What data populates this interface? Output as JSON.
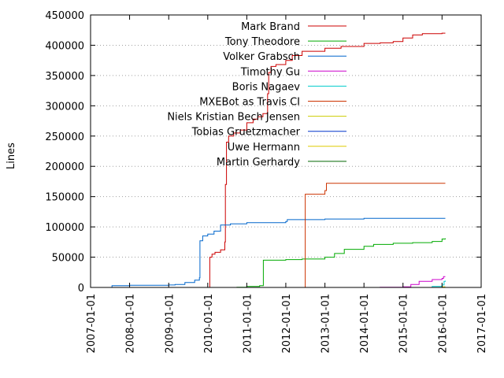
{
  "chart_data": {
    "type": "line",
    "title": "",
    "xlabel": "",
    "ylabel": "Lines",
    "xlim": [
      "2007-01-01",
      "2017-01-01"
    ],
    "ylim": [
      0,
      450000
    ],
    "x_ticks": [
      "2007-01-01",
      "2008-01-01",
      "2009-01-01",
      "2010-01-01",
      "2011-01-01",
      "2012-01-01",
      "2013-01-01",
      "2014-01-01",
      "2015-01-01",
      "2016-01-01",
      "2017-01-01"
    ],
    "y_ticks": [
      0,
      50000,
      100000,
      150000,
      200000,
      250000,
      300000,
      350000,
      400000,
      450000
    ],
    "grid": "y-dotted",
    "legend": "top-right",
    "series": [
      {
        "name": "Mark Brand",
        "color": "#cc0000",
        "points": [
          [
            "2010-01-15",
            0
          ],
          [
            "2010-01-20",
            50000
          ],
          [
            "2010-02-10",
            55000
          ],
          [
            "2010-03-10",
            58000
          ],
          [
            "2010-05-01",
            62000
          ],
          [
            "2010-06-01",
            62000
          ],
          [
            "2010-06-10",
            75000
          ],
          [
            "2010-06-15",
            170000
          ],
          [
            "2010-06-25",
            240000
          ],
          [
            "2010-07-15",
            250000
          ],
          [
            "2010-09-01",
            255000
          ],
          [
            "2010-11-01",
            260000
          ],
          [
            "2011-01-01",
            272000
          ],
          [
            "2011-03-01",
            278000
          ],
          [
            "2011-04-15",
            282000
          ],
          [
            "2011-06-01",
            287000
          ],
          [
            "2011-07-10",
            288000
          ],
          [
            "2011-07-15",
            320000
          ],
          [
            "2011-07-25",
            355000
          ],
          [
            "2011-08-15",
            365000
          ],
          [
            "2011-10-01",
            368000
          ],
          [
            "2012-01-01",
            375000
          ],
          [
            "2012-03-01",
            383000
          ],
          [
            "2012-06-01",
            390000
          ],
          [
            "2013-01-01",
            395000
          ],
          [
            "2013-06-01",
            398000
          ],
          [
            "2014-01-01",
            403000
          ],
          [
            "2014-06-01",
            404000
          ],
          [
            "2014-10-01",
            406000
          ],
          [
            "2015-01-01",
            412000
          ],
          [
            "2015-04-01",
            417000
          ],
          [
            "2015-07-01",
            419000
          ],
          [
            "2016-01-01",
            420000
          ],
          [
            "2016-02-01",
            420000
          ]
        ]
      },
      {
        "name": "Tony Theodore",
        "color": "#00aa00",
        "points": [
          [
            "2010-08-15",
            0
          ],
          [
            "2010-10-01",
            300
          ],
          [
            "2011-01-01",
            1500
          ],
          [
            "2011-05-01",
            3000
          ],
          [
            "2011-06-01",
            3000
          ],
          [
            "2011-06-05",
            45000
          ],
          [
            "2012-01-01",
            46000
          ],
          [
            "2012-06-01",
            47000
          ],
          [
            "2013-01-01",
            50000
          ],
          [
            "2013-04-01",
            56000
          ],
          [
            "2013-07-01",
            63000
          ],
          [
            "2014-01-01",
            68000
          ],
          [
            "2014-04-01",
            71000
          ],
          [
            "2014-10-01",
            73000
          ],
          [
            "2015-04-01",
            74000
          ],
          [
            "2015-10-01",
            76000
          ],
          [
            "2016-01-01",
            80000
          ],
          [
            "2016-02-01",
            81000
          ]
        ]
      },
      {
        "name": "Volker Grabsch",
        "color": "#0066cc",
        "points": [
          [
            "2007-07-15",
            0
          ],
          [
            "2007-07-20",
            3000
          ],
          [
            "2008-01-01",
            3500
          ],
          [
            "2009-01-01",
            4000
          ],
          [
            "2009-03-01",
            5000
          ],
          [
            "2009-06-01",
            8000
          ],
          [
            "2009-09-01",
            12000
          ],
          [
            "2009-10-15",
            16000
          ],
          [
            "2009-10-20",
            77000
          ],
          [
            "2009-11-15",
            85000
          ],
          [
            "2010-01-01",
            88000
          ],
          [
            "2010-03-01",
            93000
          ],
          [
            "2010-05-01",
            103000
          ],
          [
            "2010-08-01",
            105000
          ],
          [
            "2011-01-01",
            107000
          ],
          [
            "2012-01-01",
            109000
          ],
          [
            "2012-01-15",
            112000
          ],
          [
            "2013-01-01",
            113000
          ],
          [
            "2014-01-01",
            114000
          ],
          [
            "2016-02-01",
            114000
          ]
        ]
      },
      {
        "name": "Timothy Gu",
        "color": "#cc00cc",
        "points": [
          [
            "2013-01-01",
            0
          ],
          [
            "2014-06-01",
            300
          ],
          [
            "2015-01-01",
            1000
          ],
          [
            "2015-03-15",
            5000
          ],
          [
            "2015-06-01",
            10000
          ],
          [
            "2015-10-01",
            13000
          ],
          [
            "2016-01-01",
            15000
          ],
          [
            "2016-01-15",
            18000
          ],
          [
            "2016-02-01",
            18000
          ]
        ]
      },
      {
        "name": "Boris Nagaev",
        "color": "#00cccc",
        "points": [
          [
            "2015-06-01",
            0
          ],
          [
            "2015-10-01",
            1500
          ],
          [
            "2016-01-01",
            4000
          ],
          [
            "2016-01-20",
            10000
          ],
          [
            "2016-02-01",
            11000
          ]
        ]
      },
      {
        "name": "MXEBot as Travis CI",
        "color": "#cc3300",
        "points": [
          [
            "2012-06-20",
            0
          ],
          [
            "2012-07-01",
            154000
          ],
          [
            "2013-01-01",
            160000
          ],
          [
            "2013-01-15",
            172000
          ],
          [
            "2016-02-01",
            172000
          ]
        ]
      },
      {
        "name": "Niels Kristian Bech Jensen",
        "color": "#cccc00",
        "points": [
          [
            "2014-01-01",
            0
          ],
          [
            "2015-10-01",
            0
          ],
          [
            "2016-01-01",
            1000
          ],
          [
            "2016-02-01",
            1000
          ]
        ]
      },
      {
        "name": "Tobias Gruetzmacher",
        "color": "#0033cc",
        "points": [
          [
            "2016-01-01",
            0
          ],
          [
            "2016-02-01",
            500
          ]
        ]
      },
      {
        "name": "Uwe Hermann",
        "color": "#ddcc00",
        "points": [
          [
            "2010-06-01",
            0
          ],
          [
            "2016-02-01",
            300
          ]
        ]
      },
      {
        "name": "Martin Gerhardy",
        "color": "#006600",
        "points": [
          [
            "2010-08-01",
            0
          ],
          [
            "2016-02-01",
            500
          ]
        ]
      }
    ]
  }
}
